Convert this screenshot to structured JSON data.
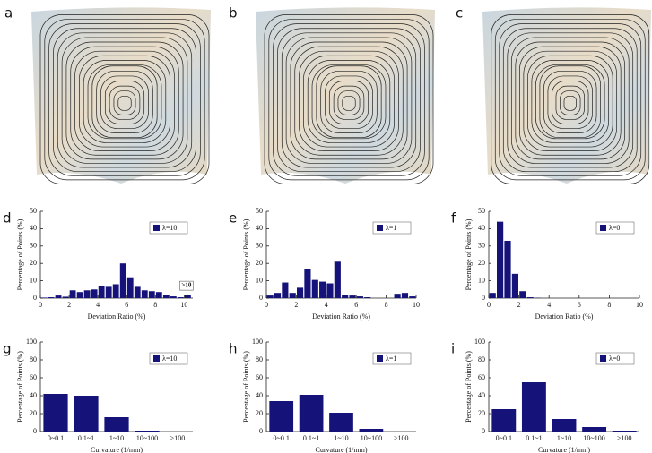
{
  "images": [
    {
      "panel": "a"
    },
    {
      "panel": "b"
    },
    {
      "panel": "c"
    }
  ],
  "chart_data": [
    {
      "type": "histogram",
      "panel": "d",
      "bins": [
        0,
        0.5,
        1,
        1.5,
        2,
        2.5,
        3,
        3.5,
        4,
        4.5,
        5,
        5.5,
        6,
        6.5,
        7,
        7.5,
        8,
        8.5,
        9,
        9.5,
        10,
        10.5
      ],
      "counts": [
        0.3,
        0.5,
        1.5,
        0.8,
        4.5,
        3.5,
        4.5,
        5,
        7,
        6.5,
        8,
        20,
        12,
        6.5,
        4.5,
        4,
        3.5,
        2,
        1,
        0.5,
        2
      ],
      "series_name": "λ=10",
      "color": "#15137a",
      "xlabel": "Deviation Ratio (%)",
      "ylabel": "Percentage of Points (%)",
      "xlim": [
        0,
        10.6
      ],
      "xticks": [
        0,
        2,
        4,
        6,
        8,
        10
      ],
      "ylim": [
        0,
        50
      ],
      "yticks": [
        0,
        10,
        20,
        30,
        40,
        50
      ],
      "annotation": ">10",
      "legend": "upper right"
    },
    {
      "type": "histogram",
      "panel": "e",
      "bins": [
        0,
        0.5,
        1,
        1.5,
        2,
        2.5,
        3,
        3.5,
        4,
        4.5,
        5,
        5.5,
        6,
        6.5,
        7,
        7.5,
        8,
        8.5,
        9,
        9.5,
        10
      ],
      "counts": [
        1.5,
        3,
        9,
        3,
        6,
        16.5,
        10.5,
        9.5,
        8.5,
        21,
        2,
        1.5,
        1,
        0.5,
        0,
        0,
        0,
        2.5,
        3,
        1
      ],
      "series_name": "λ=1",
      "color": "#15137a",
      "xlabel": "Deviation Ratio (%)",
      "ylabel": "Percentage of Points (%)",
      "xlim": [
        0,
        10
      ],
      "xticks": [
        0,
        2,
        4,
        6,
        8,
        10
      ],
      "ylim": [
        0,
        50
      ],
      "yticks": [
        0,
        10,
        20,
        30,
        40,
        50
      ],
      "legend": "upper right"
    },
    {
      "type": "histogram",
      "panel": "f",
      "bins": [
        0,
        0.5,
        1,
        1.5,
        2,
        2.5,
        3,
        3.5,
        4,
        4.5,
        5,
        5.5,
        6,
        6.5,
        7,
        7.5,
        8,
        8.5,
        9,
        9.5,
        10
      ],
      "counts": [
        3,
        44,
        33,
        14,
        4,
        0.5,
        0.2,
        0,
        0,
        0,
        0,
        0,
        0,
        0,
        0,
        0,
        0,
        0,
        0,
        0
      ],
      "series_name": "λ=0",
      "color": "#15137a",
      "xlabel": "Deviation Ratio (%)",
      "ylabel": "Percentage of Points (%)",
      "xlim": [
        0,
        10
      ],
      "xticks": [
        0,
        2,
        4,
        6,
        8,
        10
      ],
      "ylim": [
        0,
        50
      ],
      "yticks": [
        0,
        10,
        20,
        30,
        40,
        50
      ],
      "legend": "upper right"
    },
    {
      "type": "bar",
      "panel": "g",
      "categories": [
        "0~0.1",
        "0.1~1",
        "1~10",
        "10~100",
        ">100"
      ],
      "values": [
        42,
        40,
        16,
        1,
        0
      ],
      "series_name": "λ=10",
      "color": "#15137a",
      "xlabel": "Curvature (1/mm)",
      "ylabel": "Percentage of Points (%)",
      "ylim": [
        0,
        100
      ],
      "yticks": [
        0,
        20,
        40,
        60,
        80,
        100
      ],
      "legend": "upper right"
    },
    {
      "type": "bar",
      "panel": "h",
      "categories": [
        "0~0.1",
        "0.1~1",
        "1~10",
        "10~100",
        ">100"
      ],
      "values": [
        34,
        41,
        21,
        3,
        0
      ],
      "series_name": "λ=1",
      "color": "#15137a",
      "xlabel": "Curvature (1/mm)",
      "ylabel": "Percentage of Points (%)",
      "ylim": [
        0,
        100
      ],
      "yticks": [
        0,
        20,
        40,
        60,
        80,
        100
      ],
      "legend": "upper right"
    },
    {
      "type": "bar",
      "panel": "i",
      "categories": [
        "0~0.1",
        "0.1~1",
        "1~10",
        "10~100",
        ">100"
      ],
      "values": [
        25,
        55,
        14,
        5,
        1
      ],
      "series_name": "λ=0",
      "color": "#15137a",
      "xlabel": "Curvature (1/mm)",
      "ylabel": "Percentage of Points (%)",
      "ylim": [
        0,
        100
      ],
      "yticks": [
        0,
        20,
        40,
        60,
        80,
        100
      ],
      "legend": "upper right"
    }
  ]
}
